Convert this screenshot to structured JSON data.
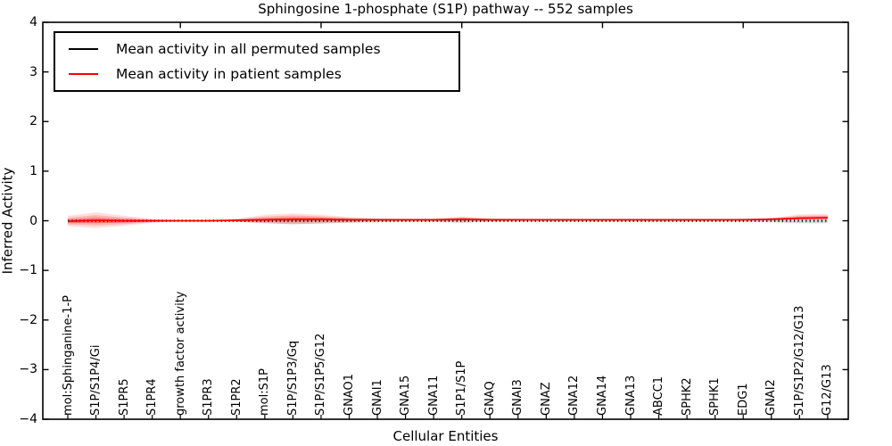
{
  "figure": {
    "title": "Sphingosine 1-phosphate (S1P) pathway -- 552 samples",
    "xlabel": "Cellular Entities",
    "ylabel": "Inferred Activity"
  },
  "legend": {
    "entries": [
      {
        "label": "Mean activity in all permuted samples",
        "color": "#000000"
      },
      {
        "label": "Mean activity in patient samples",
        "color": "#ff0000"
      }
    ]
  },
  "chart_data": {
    "type": "line",
    "title": "Sphingosine 1-phosphate (S1P) pathway -- 552 samples",
    "xlabel": "Cellular Entities",
    "ylabel": "Inferred Activity",
    "ylim": [
      -4,
      4
    ],
    "yticks": [
      -4,
      -3,
      -2,
      -1,
      0,
      1,
      2,
      3,
      4
    ],
    "ytick_labels": [
      "−4",
      "−3",
      "−2",
      "−1",
      "0",
      "1",
      "2",
      "3",
      "4"
    ],
    "grid": false,
    "legend_position": "upper left",
    "categories": [
      "mol:Sphinganine-1-P",
      "S1P/S1P4/Gi",
      "S1PR5",
      "S1PR4",
      "growth factor activity",
      "S1PR3",
      "S1PR2",
      "mol:S1P",
      "S1P/S1P3/Gq",
      "S1P/S1P5/G12",
      "GNAO1",
      "GNAI1",
      "GNA15",
      "GNA11",
      "S1P1/S1P",
      "GNAQ",
      "GNAI3",
      "GNAZ",
      "GNA12",
      "GNA14",
      "GNA13",
      "ABCC1",
      "SPHK2",
      "SPHK1",
      "EDG1",
      "GNAI2",
      "S1P/S1P2/G12/G13",
      "G12/G13"
    ],
    "series": [
      {
        "name": "Mean activity in all permuted samples",
        "color": "#000000",
        "style": "dotted",
        "values": [
          0,
          0,
          0,
          0,
          0,
          0,
          0,
          0,
          0,
          0,
          0,
          0,
          0,
          0,
          0,
          0,
          0,
          0,
          0,
          0,
          0,
          0,
          0,
          0,
          0,
          0,
          0,
          0
        ]
      },
      {
        "name": "Mean activity in patient samples",
        "color": "#ff0000",
        "style": "solid",
        "values": [
          -0.01,
          0.01,
          0.0,
          0.0,
          0.0,
          0.0,
          0.01,
          0.02,
          0.03,
          0.03,
          0.02,
          0.02,
          0.02,
          0.02,
          0.03,
          0.02,
          0.02,
          0.02,
          0.02,
          0.02,
          0.02,
          0.02,
          0.02,
          0.02,
          0.02,
          0.03,
          0.05,
          0.06
        ]
      }
    ],
    "patient_band_upper": [
      0.1,
      0.17,
      0.1,
      0.04,
      0.01,
      0.01,
      0.04,
      0.12,
      0.15,
      0.12,
      0.08,
      0.05,
      0.04,
      0.04,
      0.09,
      0.05,
      0.04,
      0.03,
      0.03,
      0.03,
      0.03,
      0.03,
      0.03,
      0.03,
      0.04,
      0.06,
      0.13,
      0.14
    ],
    "patient_band_lower": [
      -0.11,
      -0.15,
      -0.1,
      -0.04,
      -0.01,
      -0.01,
      -0.02,
      -0.05,
      -0.07,
      -0.05,
      -0.03,
      -0.01,
      -0.01,
      -0.01,
      -0.02,
      -0.01,
      0.0,
      0.0,
      0.0,
      0.0,
      0.0,
      0.0,
      0.0,
      0.0,
      0.0,
      0.01,
      0.02,
      0.02
    ],
    "permuted_band_upper": [
      0.02,
      0.03,
      0.02,
      0.01,
      0.01,
      0.01,
      0.01,
      0.02,
      0.03,
      0.03,
      0.02,
      0.02,
      0.02,
      0.02,
      0.02,
      0.01,
      0.01,
      0.01,
      0.01,
      0.01,
      0.01,
      0.01,
      0.01,
      0.01,
      0.01,
      0.02,
      0.03,
      0.03
    ],
    "permuted_band_lower": [
      -0.03,
      -0.05,
      -0.03,
      -0.02,
      -0.01,
      -0.01,
      -0.02,
      -0.05,
      -0.07,
      -0.06,
      -0.04,
      -0.03,
      -0.02,
      -0.02,
      -0.04,
      -0.02,
      -0.02,
      -0.02,
      -0.02,
      -0.02,
      -0.02,
      -0.02,
      -0.02,
      -0.02,
      -0.02,
      -0.03,
      -0.05,
      -0.05
    ],
    "patient_band_color": "#ff0000",
    "permuted_band_color": "#000000"
  }
}
